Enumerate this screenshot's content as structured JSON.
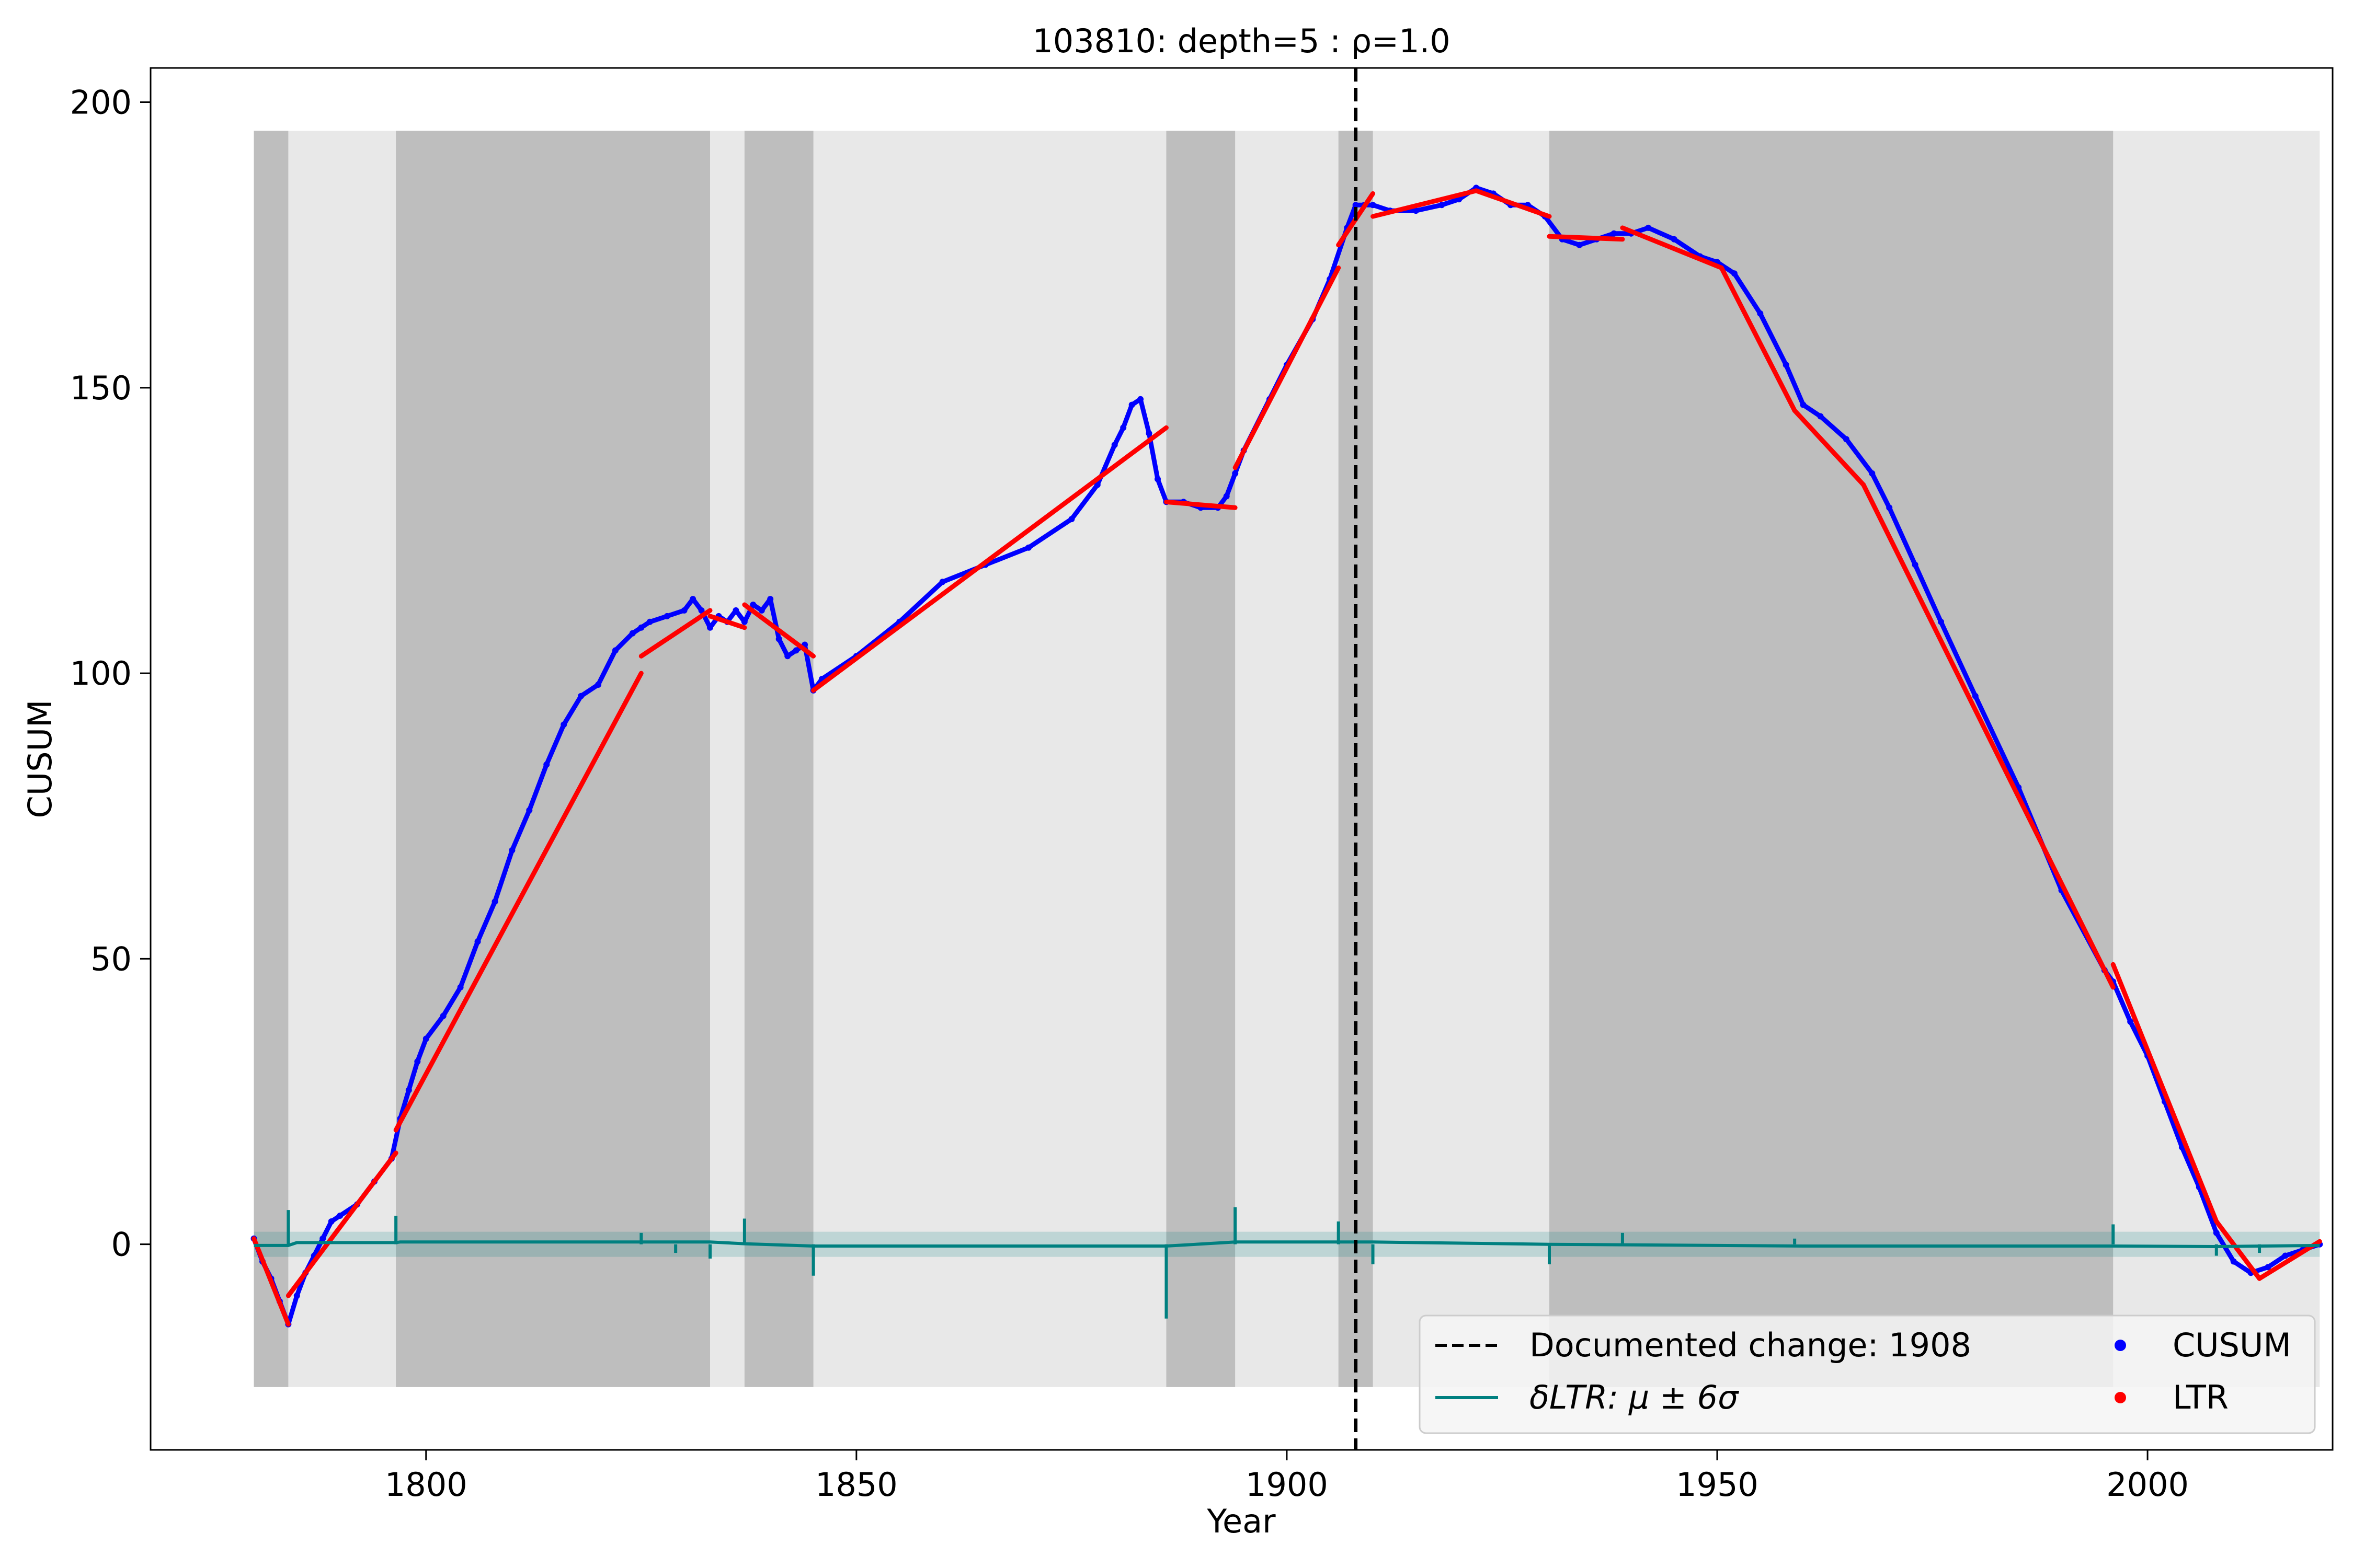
{
  "chart_data": {
    "type": "line",
    "title": "103810: depth=5 : ρ=1.0",
    "xlabel": "Year",
    "ylabel": "CUSUM",
    "xlim": [
      1768,
      2021.5
    ],
    "ylim": [
      -36,
      206
    ],
    "xticks": [
      1800,
      1850,
      1900,
      1950,
      2000
    ],
    "yticks": [
      0,
      50,
      100,
      150,
      200
    ],
    "grid": false,
    "legend_placement": "lower-right",
    "segments_background": {
      "y_range": [
        -25,
        195
      ],
      "span": [
        1780,
        2020
      ],
      "dark_spans": [
        [
          1780,
          1784
        ],
        [
          1796.5,
          1833
        ],
        [
          1837,
          1845
        ],
        [
          1886,
          1894
        ],
        [
          1906,
          1910
        ],
        [
          1930.5,
          1996
        ]
      ]
    },
    "documented_change": {
      "year": 1908,
      "label": "Documented change: 1908"
    },
    "series": [
      {
        "name": "CUSUM",
        "style": "scatter",
        "color": "#0000ff",
        "x": [
          1780,
          1781,
          1782,
          1783,
          1784,
          1785,
          1786,
          1787,
          1788,
          1789,
          1790,
          1792,
          1794,
          1796,
          1797,
          1798,
          1799,
          1800,
          1802,
          1804,
          1806,
          1808,
          1810,
          1812,
          1814,
          1816,
          1818,
          1820,
          1822,
          1824,
          1825,
          1826,
          1828,
          1830,
          1831,
          1832,
          1833,
          1834,
          1835,
          1836,
          1837,
          1838,
          1839,
          1840,
          1841,
          1842,
          1843,
          1844,
          1845,
          1846,
          1850,
          1855,
          1860,
          1865,
          1870,
          1875,
          1878,
          1880,
          1881,
          1882,
          1883,
          1884,
          1885,
          1886,
          1888,
          1890,
          1892,
          1893,
          1894,
          1895,
          1898,
          1900,
          1903,
          1905,
          1907,
          1908,
          1909,
          1910,
          1912,
          1915,
          1918,
          1920,
          1922,
          1924,
          1926,
          1928,
          1930,
          1932,
          1934,
          1936,
          1938,
          1940,
          1942,
          1945,
          1948,
          1950,
          1952,
          1955,
          1958,
          1960,
          1962,
          1965,
          1968,
          1970,
          1973,
          1976,
          1980,
          1985,
          1990,
          1995,
          1996,
          1998,
          2000,
          2002,
          2004,
          2006,
          2008,
          2010,
          2012,
          2014,
          2016,
          2018,
          2020
        ],
        "y": [
          1,
          -3,
          -6,
          -10,
          -14,
          -9,
          -5,
          -2,
          1,
          4,
          5,
          7,
          11,
          15,
          22,
          27,
          32,
          36,
          40,
          45,
          53,
          60,
          69,
          76,
          84,
          91,
          96,
          98,
          104,
          107,
          108,
          109,
          110,
          111,
          113,
          111,
          108,
          110,
          109,
          111,
          109,
          112,
          111,
          113,
          106,
          103,
          104,
          105,
          97,
          99,
          103,
          109,
          116,
          119,
          122,
          127,
          133,
          140,
          143,
          147,
          148,
          142,
          134,
          130,
          130,
          129,
          129,
          131,
          135,
          139,
          148,
          154,
          162,
          169,
          178,
          182,
          182,
          182,
          181,
          181,
          182,
          183,
          185,
          184,
          182,
          182,
          180,
          176,
          175,
          176,
          177,
          177,
          178,
          176,
          173,
          172,
          170,
          163,
          154,
          147,
          145,
          141,
          135,
          129,
          119,
          109,
          96,
          80,
          62,
          48,
          46,
          39,
          33,
          25,
          17,
          10,
          2,
          -3,
          -5,
          -4,
          -2,
          -1,
          0
        ]
      },
      {
        "name": "LTR",
        "style": "segments",
        "color": "#ff0000",
        "segments": [
          [
            [
              1780,
              1
            ],
            [
              1784,
              -14
            ]
          ],
          [
            [
              1784,
              -9
            ],
            [
              1796.5,
              16
            ]
          ],
          [
            [
              1796.5,
              20
            ],
            [
              1825,
              100
            ]
          ],
          [
            [
              1825,
              103
            ],
            [
              1833,
              111
            ]
          ],
          [
            [
              1833,
              110
            ],
            [
              1837,
              108
            ]
          ],
          [
            [
              1837,
              112
            ],
            [
              1845,
              103
            ]
          ],
          [
            [
              1845,
              97
            ],
            [
              1886,
              143
            ]
          ],
          [
            [
              1886,
              130
            ],
            [
              1894,
              129
            ]
          ],
          [
            [
              1894,
              136
            ],
            [
              1906,
              171
            ]
          ],
          [
            [
              1906,
              175
            ],
            [
              1910,
              184
            ]
          ],
          [
            [
              1910,
              180
            ],
            [
              1922,
              184.5
            ]
          ],
          [
            [
              1922,
              184.5
            ],
            [
              1930.5,
              180
            ]
          ],
          [
            [
              1930.5,
              176.5
            ],
            [
              1939,
              176
            ]
          ],
          [
            [
              1939,
              178
            ],
            [
              1950.5,
              171
            ]
          ],
          [
            [
              1950.5,
              171
            ],
            [
              1959,
              146
            ]
          ],
          [
            [
              1959,
              146
            ],
            [
              1967,
              133
            ]
          ],
          [
            [
              1967,
              133
            ],
            [
              1996,
              45
            ]
          ],
          [
            [
              1996,
              49
            ],
            [
              2008,
              4
            ]
          ],
          [
            [
              2008,
              4
            ],
            [
              2013,
              -6
            ]
          ],
          [
            [
              2013,
              -6
            ],
            [
              2020,
              0.5
            ]
          ]
        ]
      },
      {
        "name": "δLTR: μ ± 6σ",
        "style": "line",
        "color": "#008080",
        "band": [
          -2.2,
          2.2
        ],
        "baseline": [
          [
            1780,
            -0.2
          ],
          [
            1784,
            -0.2
          ],
          [
            1785,
            0.3
          ],
          [
            1796.5,
            0.3
          ],
          [
            1797,
            0.4
          ],
          [
            1833,
            0.4
          ],
          [
            1837,
            0.1
          ],
          [
            1845,
            -0.3
          ],
          [
            1886,
            -0.3
          ],
          [
            1894,
            0.4
          ],
          [
            1910,
            0.4
          ],
          [
            1930.5,
            0
          ],
          [
            1960,
            -0.3
          ],
          [
            1996,
            -0.3
          ],
          [
            2008,
            -0.4
          ],
          [
            2020,
            -0.2
          ]
        ],
        "spikes": [
          [
            1784,
            6
          ],
          [
            1796.5,
            5
          ],
          [
            1825,
            2
          ],
          [
            1829,
            -1.5
          ],
          [
            1833,
            -2.5
          ],
          [
            1837,
            4.5
          ],
          [
            1845,
            -5.5
          ],
          [
            1886,
            -13
          ],
          [
            1894,
            6.5
          ],
          [
            1906,
            4
          ],
          [
            1910,
            -3.5
          ],
          [
            1930.5,
            -3.5
          ],
          [
            1939,
            2
          ],
          [
            1959,
            1
          ],
          [
            1996,
            3.5
          ],
          [
            2008,
            -2
          ],
          [
            2013,
            -1.5
          ]
        ]
      }
    ],
    "legend": [
      {
        "label": "Documented change: 1908",
        "marker": "dashed-line"
      },
      {
        "label": "CUSUM",
        "marker": "blue-dot"
      },
      {
        "label": "δLTR: μ ± 6σ",
        "marker": "teal-line"
      },
      {
        "label": "LTR",
        "marker": "red-dot"
      }
    ]
  }
}
